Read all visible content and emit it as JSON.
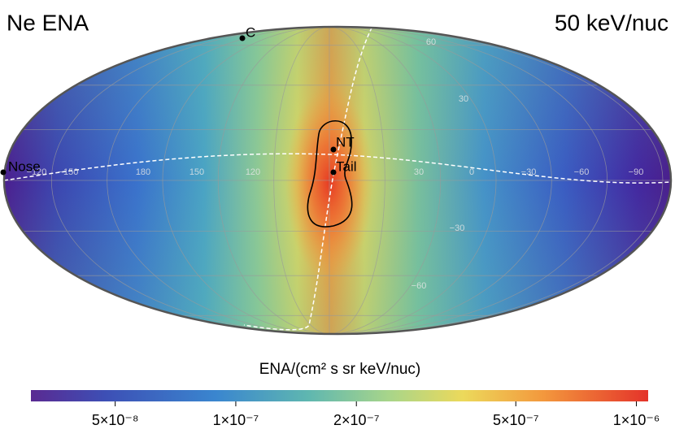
{
  "title": "Ne ENA",
  "energy": "50 keV/nuc",
  "points": [
    {
      "label": "C"
    },
    {
      "label": "NT"
    },
    {
      "label": "Tail"
    },
    {
      "label": "Nose"
    }
  ],
  "longitude_labels": [
    "−120",
    "−150",
    "180",
    "150",
    "120",
    "30",
    "0",
    "−30",
    "−60",
    "−90"
  ],
  "latitude_labels": [
    "60",
    "30",
    "−30",
    "−60"
  ],
  "colorbar": {
    "label": "ENA/(cm² s sr keV/nuc)",
    "scale": "log",
    "lim": [
      3.08e-08,
      1.07e-06
    ],
    "ticks": [
      {
        "value": 5e-08,
        "label": "5×10⁻⁸"
      },
      {
        "value": 1e-07,
        "label": "1×10⁻⁷"
      },
      {
        "value": 2e-07,
        "label": "2×10⁻⁷"
      },
      {
        "value": 5e-07,
        "label": "5×10⁻⁷"
      },
      {
        "value": 1e-06,
        "label": "1×10⁻⁶"
      }
    ]
  }
}
